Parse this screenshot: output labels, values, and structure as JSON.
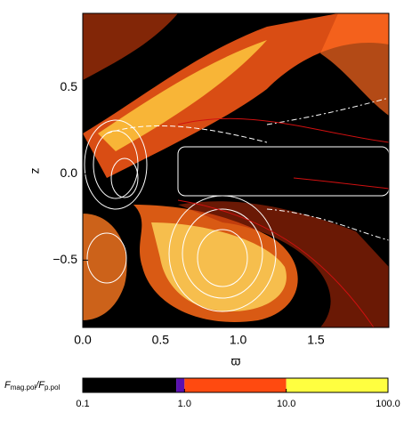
{
  "chart_data": {
    "type": "heatmap",
    "xlabel": "ϖ",
    "ylabel": "z",
    "xlim": [
      0,
      1.97
    ],
    "ylim": [
      -0.89,
      0.93
    ],
    "xticks": [
      {
        "value": 0,
        "label": "0.0"
      },
      {
        "value": 0.5,
        "label": "0.5"
      },
      {
        "value": 1,
        "label": "1.0"
      },
      {
        "value": 1.5,
        "label": "1.5"
      }
    ],
    "yticks": [
      {
        "value": -0.5,
        "label": "−0.5"
      },
      {
        "value": 0,
        "label": "0.0"
      },
      0.5
    ],
    "colorbar": {
      "label_parts": [
        "F",
        "mag.pol",
        "/F",
        "p.pol"
      ],
      "log": true,
      "lim": [
        0.1,
        100
      ],
      "ticks": [
        0.1,
        {
          "value": 1,
          "label": "1.0"
        },
        {
          "value": 10,
          "label": "10.0"
        },
        {
          "value": 100,
          "label": "100.0"
        }
      ],
      "segments": [
        {
          "from": 0.1,
          "to": 0.83,
          "color": "#000000"
        },
        {
          "from": 0.83,
          "to": 1,
          "color": "#5a10b0"
        },
        {
          "from": 1,
          "to": 10,
          "color": "#ff4a10"
        },
        {
          "from": 10,
          "to": 100,
          "color": "#ffff40"
        }
      ]
    }
  }
}
